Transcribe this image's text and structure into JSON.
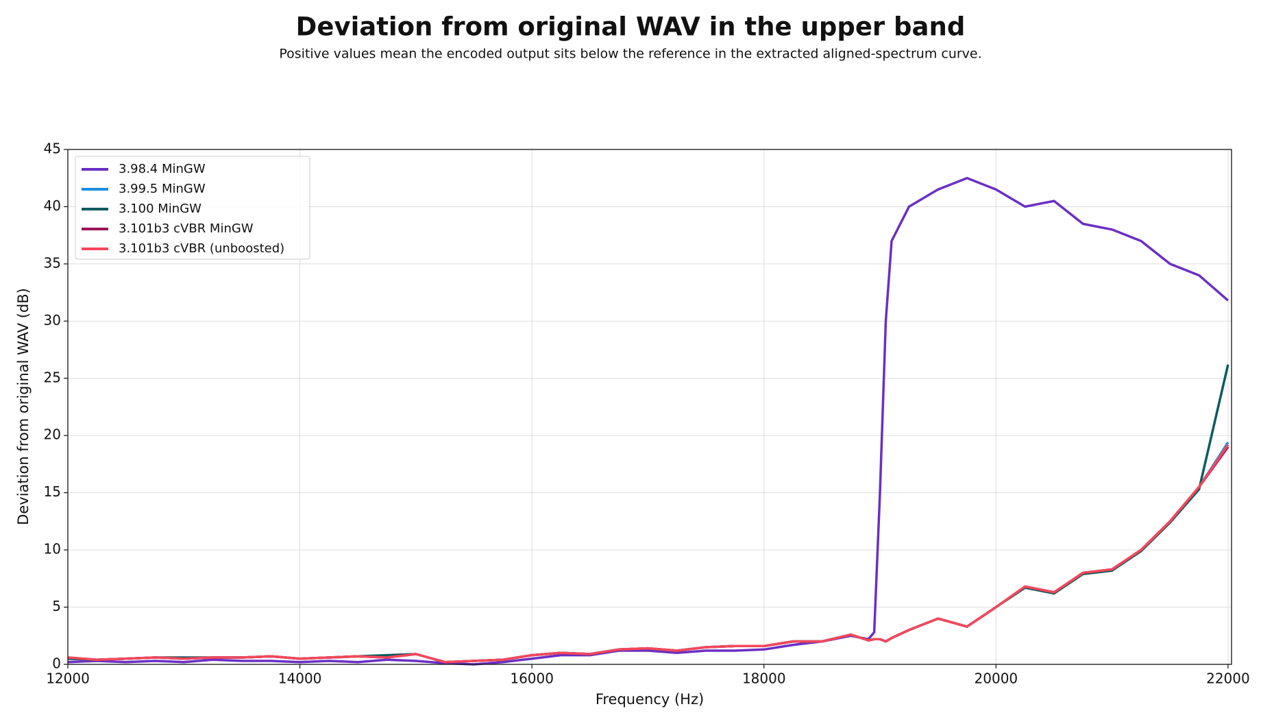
{
  "chart_data": {
    "type": "line",
    "title": "Deviation from original WAV in the upper band",
    "subtitle": "Positive values mean the encoded output sits below the reference in the extracted aligned-spectrum curve.",
    "xlabel": "Frequency (Hz)",
    "ylabel": "Deviation from original WAV (dB)",
    "x": [
      12000,
      12250,
      12500,
      12750,
      13000,
      13250,
      13500,
      13750,
      14000,
      14250,
      14500,
      14750,
      15000,
      15250,
      15500,
      15750,
      16000,
      16250,
      16500,
      16750,
      17000,
      17250,
      17500,
      17750,
      18000,
      18250,
      18500,
      18750,
      18900,
      18950,
      19000,
      19050,
      19100,
      19250,
      19500,
      19750,
      20000,
      20250,
      20500,
      20750,
      21000,
      21250,
      21500,
      21750,
      22000
    ],
    "series": [
      {
        "name": "3.98.4 MinGW",
        "color": "#6a2fc4",
        "values": [
          0.2,
          0.3,
          0.2,
          0.3,
          0.2,
          0.4,
          0.3,
          0.3,
          0.2,
          0.3,
          0.2,
          0.4,
          0.3,
          0.1,
          0,
          0.2,
          0.5,
          0.8,
          0.8,
          1.2,
          1.2,
          1.0,
          1.2,
          1.2,
          1.3,
          1.7,
          2.0,
          2.5,
          2.2,
          2.8,
          15,
          30,
          37,
          40,
          41.5,
          42.5,
          41.5,
          40,
          40.5,
          38.5,
          38,
          37,
          35,
          34,
          31.8
        ]
      },
      {
        "name": "3.99.5 MinGW",
        "color": "#1a8fe0",
        "values": [
          0.5,
          0.4,
          0.5,
          0.6,
          0.5,
          0.6,
          0.6,
          0.7,
          0.5,
          0.6,
          0.7,
          0.6,
          0.9,
          0.2,
          0.3,
          0.4,
          0.8,
          1.0,
          0.9,
          1.3,
          1.4,
          1.2,
          1.5,
          1.6,
          1.6,
          2.0,
          2.0,
          2.6,
          2.1,
          2.2,
          2.2,
          2.0,
          2.3,
          3.0,
          4.0,
          3.3,
          5.0,
          6.8,
          6.3,
          8.0,
          8.3,
          10.0,
          12.5,
          15.5,
          19.4
        ]
      },
      {
        "name": "3.100 MinGW",
        "color": "#0b5b5e",
        "values": [
          0.5,
          0.4,
          0.5,
          0.6,
          0.6,
          0.6,
          0.6,
          0.7,
          0.5,
          0.6,
          0.7,
          0.8,
          0.9,
          0.2,
          0.3,
          0.4,
          0.8,
          1.0,
          0.9,
          1.3,
          1.4,
          1.2,
          1.5,
          1.6,
          1.6,
          2.0,
          2.0,
          2.6,
          2.1,
          2.2,
          2.2,
          2.0,
          2.3,
          3.0,
          4.0,
          3.3,
          5.0,
          6.7,
          6.2,
          7.9,
          8.2,
          9.9,
          12.4,
          15.3,
          26.2
        ]
      },
      {
        "name": "3.101b3 cVBR MinGW",
        "color": "#9b1456",
        "values": [
          0.6,
          0.4,
          0.5,
          0.6,
          0.5,
          0.6,
          0.6,
          0.7,
          0.5,
          0.6,
          0.7,
          0.6,
          0.9,
          0.2,
          0.3,
          0.4,
          0.8,
          1.0,
          0.9,
          1.3,
          1.4,
          1.2,
          1.5,
          1.6,
          1.6,
          2.0,
          2.0,
          2.6,
          2.1,
          2.2,
          2.2,
          2.0,
          2.3,
          3.0,
          4.0,
          3.3,
          5.0,
          6.8,
          6.3,
          8.0,
          8.3,
          10.0,
          12.5,
          15.5,
          19.0
        ]
      },
      {
        "name": "3.101b3 cVBR (unboosted)",
        "color": "#f5485a",
        "values": [
          0.6,
          0.4,
          0.5,
          0.6,
          0.5,
          0.6,
          0.6,
          0.7,
          0.5,
          0.6,
          0.7,
          0.6,
          0.9,
          0.2,
          0.3,
          0.4,
          0.8,
          1.0,
          0.9,
          1.3,
          1.4,
          1.2,
          1.5,
          1.6,
          1.6,
          2.0,
          2.0,
          2.6,
          2.1,
          2.2,
          2.2,
          2.0,
          2.3,
          3.0,
          4.0,
          3.3,
          5.0,
          6.8,
          6.3,
          8.0,
          8.3,
          10.0,
          12.5,
          15.5,
          19.2
        ]
      }
    ],
    "xlim": [
      12000,
      22030
    ],
    "ylim": [
      0,
      45
    ],
    "xticks": [
      12000,
      14000,
      16000,
      18000,
      20000,
      22000
    ],
    "yticks": [
      0,
      5,
      10,
      15,
      20,
      25,
      30,
      35,
      40,
      45
    ],
    "grid": true,
    "legend": "upper-left"
  }
}
